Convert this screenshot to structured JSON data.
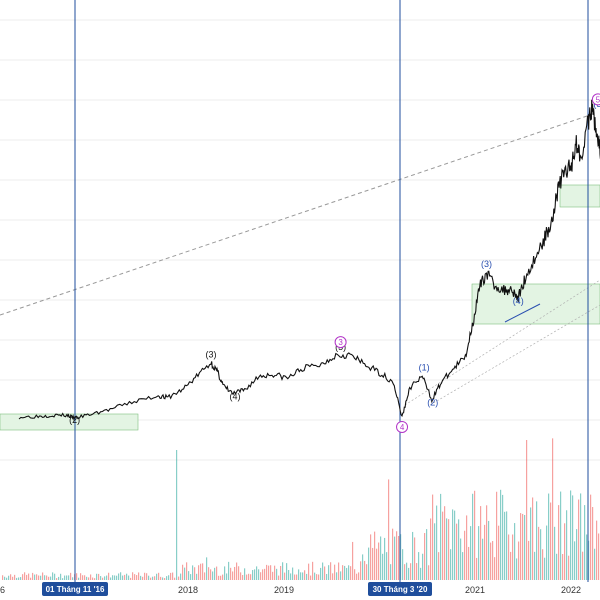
{
  "chart_data": {
    "type": "line",
    "title": "",
    "xlabel": "",
    "ylabel": "",
    "grid": true,
    "x_ticks": [
      "6",
      "2018",
      "2019",
      "2021",
      "2022"
    ],
    "date_markers": [
      "01 Tháng 11 '16",
      "30 Tháng 3 '20"
    ],
    "series": [
      {
        "values_normalized": [
          [
            2016.25,
            0.04
          ],
          [
            2016.45,
            0.045
          ],
          [
            2016.6,
            0.05
          ],
          [
            2016.75,
            0.05
          ],
          [
            2016.83,
            0.035
          ],
          [
            2017.0,
            0.055
          ],
          [
            2017.2,
            0.08
          ],
          [
            2017.45,
            0.12
          ],
          [
            2017.7,
            0.15
          ],
          [
            2017.8,
            0.14
          ],
          [
            2017.95,
            0.18
          ],
          [
            2018.1,
            0.25
          ],
          [
            2018.25,
            0.32
          ],
          [
            2018.32,
            0.27
          ],
          [
            2018.38,
            0.2
          ],
          [
            2018.48,
            0.16
          ],
          [
            2018.6,
            0.18
          ],
          [
            2018.75,
            0.25
          ],
          [
            2018.9,
            0.26
          ],
          [
            2019.05,
            0.24
          ],
          [
            2019.2,
            0.29
          ],
          [
            2019.4,
            0.31
          ],
          [
            2019.55,
            0.36
          ],
          [
            2019.7,
            0.36
          ],
          [
            2019.85,
            0.31
          ],
          [
            2020.0,
            0.27
          ],
          [
            2020.15,
            0.22
          ],
          [
            2020.24,
            0.04
          ],
          [
            2020.32,
            0.19
          ],
          [
            2020.45,
            0.25
          ],
          [
            2020.55,
            0.13
          ],
          [
            2020.65,
            0.22
          ],
          [
            2020.78,
            0.29
          ],
          [
            2020.9,
            0.35
          ],
          [
            2020.98,
            0.53
          ],
          [
            2021.05,
            0.71
          ],
          [
            2021.12,
            0.78
          ],
          [
            2021.2,
            0.72
          ],
          [
            2021.3,
            0.69
          ],
          [
            2021.38,
            0.7
          ],
          [
            2021.45,
            0.65
          ],
          [
            2021.52,
            0.75
          ],
          [
            2021.62,
            0.85
          ],
          [
            2021.72,
            0.95
          ],
          [
            2021.8,
            1.05
          ],
          [
            2021.87,
            1.22
          ],
          [
            2021.93,
            1.3
          ],
          [
            2022.0,
            1.32
          ],
          [
            2022.05,
            1.45
          ],
          [
            2022.1,
            1.38
          ],
          [
            2022.18,
            1.55
          ],
          [
            2022.22,
            1.62
          ],
          [
            2022.27,
            1.5
          ],
          [
            2022.31,
            1.38
          ],
          [
            2022.34,
            1.33
          ]
        ]
      }
    ],
    "wave_labels": [
      {
        "text": "(2)",
        "x": 2016.83,
        "y": 0.01
      },
      {
        "text": "(3)",
        "x": 2018.25,
        "y": 0.345
      },
      {
        "text": "(4)",
        "x": 2018.5,
        "y": 0.13
      },
      {
        "text": "(5)",
        "x": 2019.6,
        "y": 0.385
      },
      {
        "text": "(1)",
        "x": 2020.47,
        "y": 0.28
      },
      {
        "text": "(2)",
        "x": 2020.56,
        "y": 0.1
      },
      {
        "text": "(3)",
        "x": 2021.12,
        "y": 0.81
      },
      {
        "text": "(4)",
        "x": 2021.45,
        "y": 0.62
      },
      {
        "text": "(3)",
        "x": 2022.29,
        "y": 1.63
      }
    ],
    "circled_labels": [
      {
        "text": "3",
        "x": 2019.6,
        "y": 0.425
      },
      {
        "text": "4",
        "x": 2020.24,
        "y": -0.01
      },
      {
        "text": "5",
        "x": 2022.28,
        "y": 1.67
      }
    ],
    "colors": {
      "price": "#111111",
      "volume_up": "#26a69a",
      "volume_down": "#ef5350",
      "marker": "#1f4e9c",
      "circle": "#b234c8",
      "zone_fill": "#e3f4e3",
      "zone_stroke": "#7fbf7f",
      "trendline": "#999999"
    }
  }
}
